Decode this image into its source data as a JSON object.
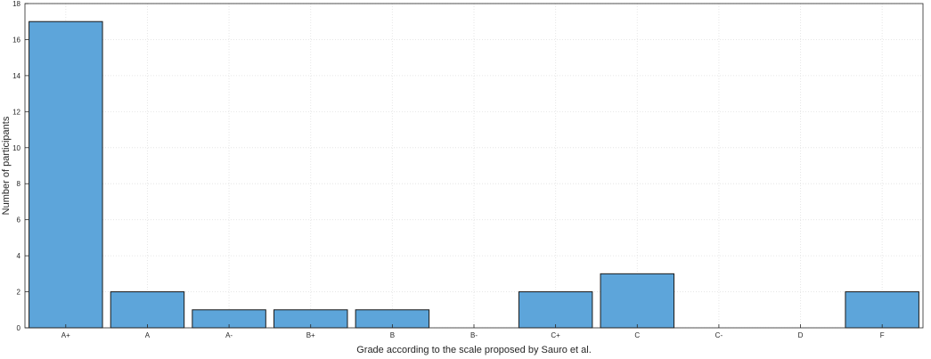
{
  "chart_data": {
    "type": "bar",
    "title": "",
    "xlabel": "Grade according to the scale proposed by Sauro et al.",
    "ylabel": "Number of participants",
    "categories": [
      "A+",
      "A",
      "A-",
      "B+",
      "B",
      "B-",
      "C+",
      "C",
      "C-",
      "D",
      "F"
    ],
    "values": [
      17,
      2,
      1,
      1,
      1,
      0,
      2,
      3,
      0,
      0,
      2
    ],
    "ylim": [
      0,
      18
    ],
    "yticks": [
      0,
      2,
      4,
      6,
      8,
      10,
      12,
      14,
      16,
      18
    ],
    "grid": true,
    "bar_color": "#5da5da"
  }
}
